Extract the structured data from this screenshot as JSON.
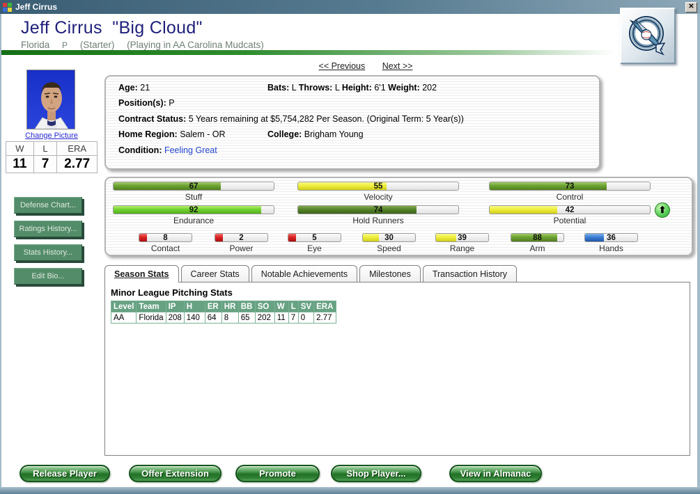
{
  "window": {
    "title": "Jeff Cirrus",
    "close_glyph": "✕"
  },
  "header": {
    "name": "Jeff Cirrus",
    "nickname": "\"Big Cloud\"",
    "team": "Florida",
    "position": "P",
    "role": "(Starter)",
    "assignment": "(Playing in AA Carolina Mudcats)"
  },
  "nav": {
    "previous": "<< Previous",
    "next": "Next >>"
  },
  "sidebar": {
    "change_picture": "Change Picture",
    "record": {
      "headers": [
        "W",
        "L",
        "ERA"
      ],
      "values": [
        "11",
        "7",
        "2.77"
      ]
    },
    "buttons": [
      "Defense Chart...",
      "Ratings History...",
      "Stats History...",
      "Edit Bio..."
    ]
  },
  "bio": {
    "age_label": "Age:",
    "age": "21",
    "bats_label": "Bats:",
    "bats": "L",
    "throws_label": "Throws:",
    "throws": "L",
    "height_label": "Height:",
    "height": "6'1",
    "weight_label": "Weight:",
    "weight": "202",
    "positions_label": "Position(s):",
    "positions": "P",
    "contract_label": "Contract Status:",
    "contract": "5 Years remaining at $5,754,282 Per Season. (Original Term: 5 Year(s))",
    "home_label": "Home Region:",
    "home": "Salem -  OR",
    "college_label": "College:",
    "college": "Brigham Young",
    "condition_label": "Condition:",
    "condition": "Feeling Great"
  },
  "ratings": {
    "large": [
      {
        "name": "Stuff",
        "value": 67,
        "color": "green"
      },
      {
        "name": "Velocity",
        "value": 55,
        "color": "yellow"
      },
      {
        "name": "Control",
        "value": 73,
        "color": "green"
      },
      {
        "name": "Endurance",
        "value": 92,
        "color": "bright"
      },
      {
        "name": "Hold Runners",
        "value": 74,
        "color": "dark"
      },
      {
        "name": "Potential",
        "value": 42,
        "color": "yellow",
        "trend": "up"
      }
    ],
    "small": [
      {
        "name": "Contact",
        "value": 8,
        "color": "red"
      },
      {
        "name": "Power",
        "value": 2,
        "color": "red"
      },
      {
        "name": "Eye",
        "value": 5,
        "color": "red"
      },
      {
        "name": "Speed",
        "value": 30,
        "color": "yellow"
      },
      {
        "name": "Range",
        "value": 39,
        "color": "yellow"
      },
      {
        "name": "Arm",
        "value": 88,
        "color": "green"
      },
      {
        "name": "Hands",
        "value": 36,
        "color": "blue"
      }
    ]
  },
  "tabs": [
    {
      "label": "Season Stats",
      "active": true
    },
    {
      "label": "Career Stats",
      "active": false
    },
    {
      "label": "Notable Achievements",
      "active": false
    },
    {
      "label": "Milestones",
      "active": false
    },
    {
      "label": "Transaction History",
      "active": false
    }
  ],
  "stats": {
    "heading": "Minor League Pitching Stats",
    "columns": [
      "Level",
      "Team",
      "IP",
      "H",
      "ER",
      "HR",
      "BB",
      "SO",
      "W",
      "L",
      "SV",
      "ERA"
    ],
    "rows": [
      [
        "AA",
        "Florida",
        "208",
        "140",
        "64",
        "8",
        "65",
        "202",
        "11",
        "7",
        "0",
        "2.77"
      ]
    ]
  },
  "actions": [
    "Release Player",
    "Offer Extension",
    "Promote",
    "Shop Player...",
    "View in Almanac"
  ],
  "colors": {
    "title_text": "#1f1f7a",
    "table_header_green": "#67a283",
    "bar_green": "#6ca232",
    "bar_yellow": "#eeee3c",
    "bar_red": "#dd2222",
    "bar_blue": "#3c7cd4",
    "action_green": "#217026",
    "link_blue": "#2244cc"
  }
}
